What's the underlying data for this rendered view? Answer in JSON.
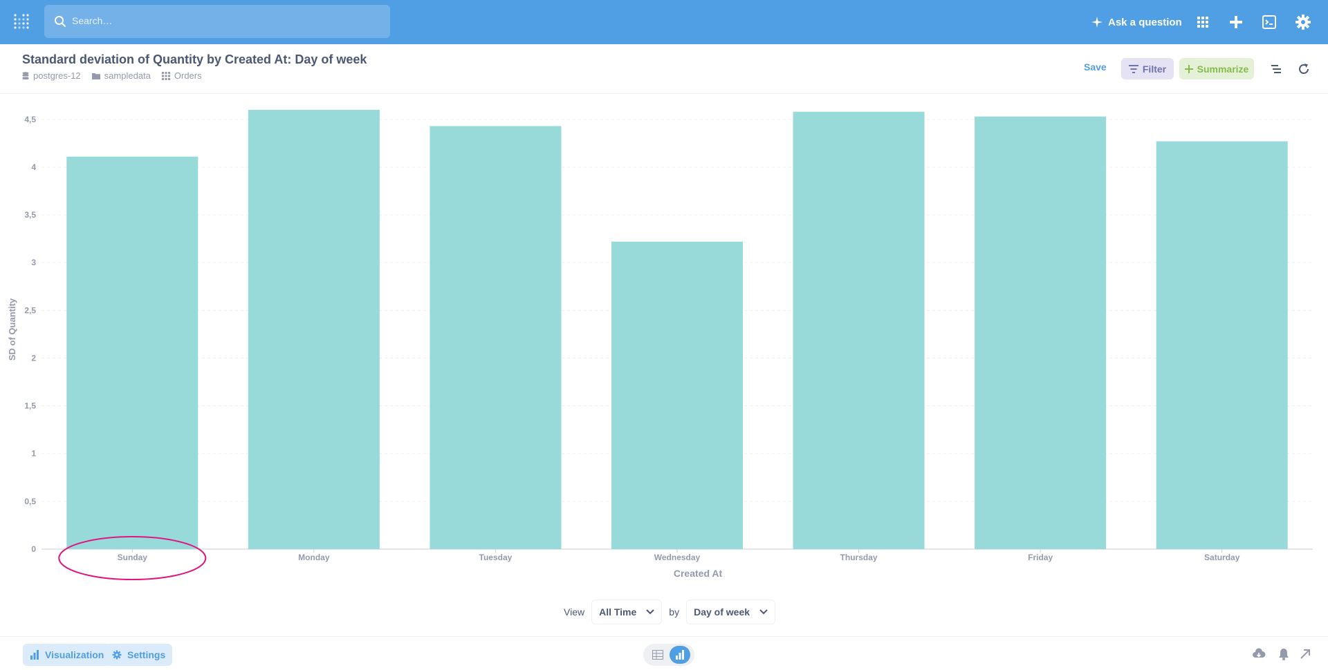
{
  "nav": {
    "search_placeholder": "Search…",
    "ask_label": "Ask a question"
  },
  "header": {
    "title": "Standard deviation of Quantity by Created At: Day of week",
    "breadcrumbs": [
      "postgres-12",
      "sampledata",
      "Orders"
    ],
    "save_label": "Save",
    "filter_label": "Filter",
    "summarize_label": "Summarize"
  },
  "view_row": {
    "view_label": "View",
    "period_value": "All Time",
    "by_label": "by",
    "grouping_value": "Day of week"
  },
  "footer": {
    "visualization_label": "Visualization",
    "settings_label": "Settings"
  },
  "colors": {
    "brand": "#509ee3",
    "bar": "#98d9d9",
    "highlight": "#e0157e"
  },
  "chart_data": {
    "type": "bar",
    "categories": [
      "Sunday",
      "Monday",
      "Tuesday",
      "Wednesday",
      "Thursday",
      "Friday",
      "Saturday"
    ],
    "values": [
      4.11,
      4.6,
      4.43,
      3.22,
      4.58,
      4.53,
      4.27
    ],
    "xlabel": "Created At",
    "ylabel": "SD of Quantity",
    "ylim": [
      0,
      4.6
    ],
    "yticks": [
      "0",
      "0,5",
      "1",
      "1,5",
      "2",
      "2,5",
      "3",
      "3,5",
      "4",
      "4,5"
    ],
    "grid": true,
    "highlighted_category": "Sunday"
  }
}
